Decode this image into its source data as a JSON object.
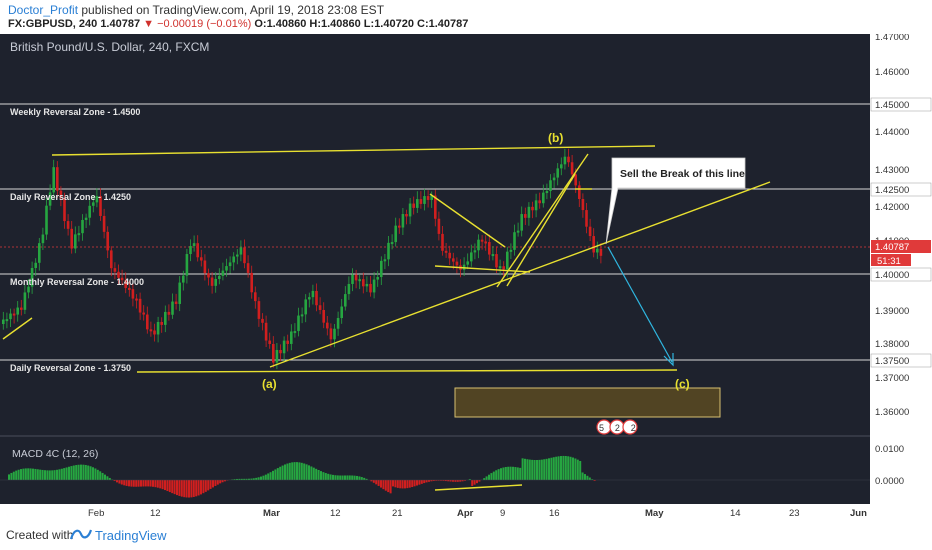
{
  "header": {
    "author": "Doctor_Profit",
    "published": "published on TradingView.com, April 19, 2018 23:08 EST",
    "symbol_line": "FX:GBPUSD, 240",
    "last": "1.40787",
    "change": "▼ −0.00019 (−0.01%)",
    "ohlc": "O:1.40860 H:1.40860 L:1.40720 C:1.40787"
  },
  "chart": {
    "title": "British Pound/U.S. Dollar, 240, FXCM",
    "price_labels": [
      "1.47000",
      "1.46000",
      "1.45000",
      "1.44000",
      "1.43000",
      "1.42500",
      "1.42000",
      "1.41000",
      "1.40787",
      "51:31",
      "1.40000",
      "1.39000",
      "1.38000",
      "1.37500",
      "1.37000",
      "1.36000"
    ],
    "zones": {
      "weekly": "Weekly Reversal Zone - 1.4500",
      "daily_upper": "Daily Reversal Zone - 1.4250",
      "monthly": "Monthly Reversal Zone - 1.4000",
      "daily_lower": "Daily Reversal Zone - 1.3750"
    },
    "wave_labels": {
      "a": "(a)",
      "b": "(b)",
      "c": "(c)"
    },
    "callout": "Sell the Break of this line",
    "earnings_badge": "5 2 2",
    "time_labels": [
      "Feb",
      "12",
      "Mar",
      "12",
      "21",
      "Apr",
      "9",
      "16",
      "May",
      "14",
      "23",
      "Jun"
    ],
    "colors": {
      "bg": "#1e222d",
      "up": "#26a641",
      "down": "#d11f1f",
      "annot": "#e8e030",
      "arrow": "#2fb6e0",
      "price_tag": "#e03a3a"
    }
  },
  "macd": {
    "title": "MACD 4C (12, 26)",
    "labels": [
      "0.0100",
      "0.0000"
    ]
  },
  "footer": {
    "created_with": "Created with",
    "brand": "TradingView"
  }
}
